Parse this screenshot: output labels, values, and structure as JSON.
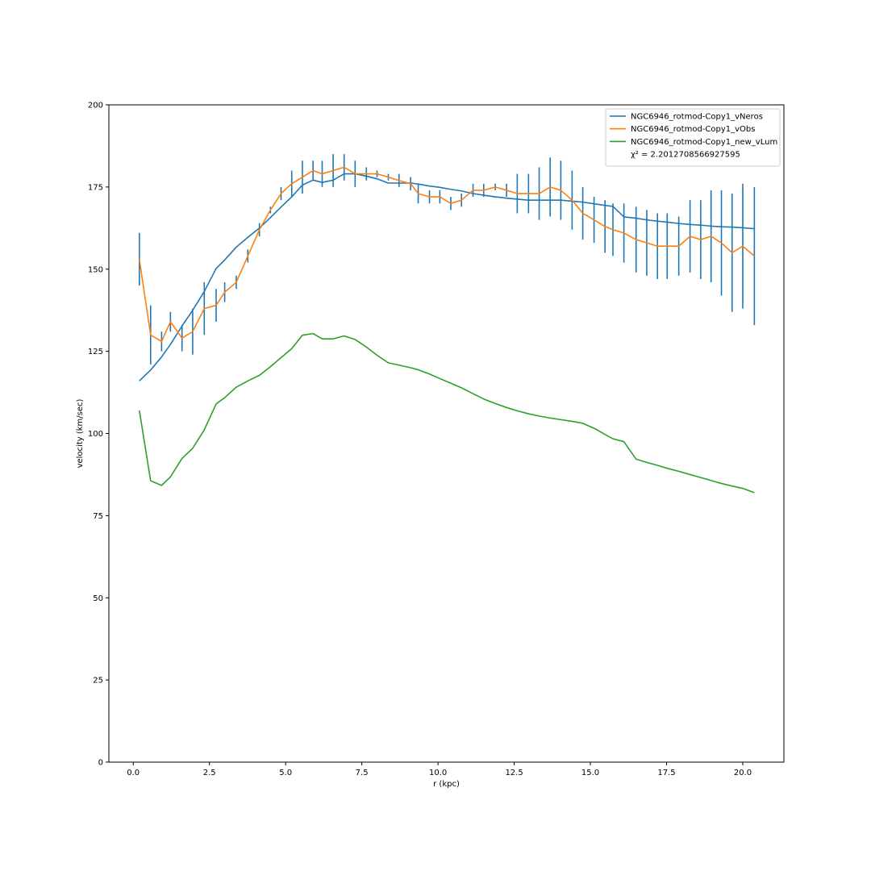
{
  "chart_data": {
    "type": "line",
    "title": "",
    "xlabel": "r (kpc)",
    "ylabel": "velocity (km/sec)",
    "xlim": [
      -0.8,
      21.35
    ],
    "ylim": [
      0,
      200
    ],
    "xticks": [
      {
        "value": 0.0,
        "label": "0.0"
      },
      {
        "value": 2.5,
        "label": "2.5"
      },
      {
        "value": 5.0,
        "label": "5.0"
      },
      {
        "value": 7.5,
        "label": "7.5"
      },
      {
        "value": 10.0,
        "label": "10.0"
      },
      {
        "value": 12.5,
        "label": "12.5"
      },
      {
        "value": 15.0,
        "label": "15.0"
      },
      {
        "value": 17.5,
        "label": "17.5"
      },
      {
        "value": 20.0,
        "label": "20.0"
      }
    ],
    "yticks": [
      {
        "value": 0,
        "label": "0"
      },
      {
        "value": 25,
        "label": "25"
      },
      {
        "value": 50,
        "label": "50"
      },
      {
        "value": 75,
        "label": "75"
      },
      {
        "value": 100,
        "label": "100"
      },
      {
        "value": 125,
        "label": "125"
      },
      {
        "value": 150,
        "label": "150"
      },
      {
        "value": 175,
        "label": "175"
      },
      {
        "value": 200,
        "label": "200"
      }
    ],
    "grid": false,
    "legend_position": "top-right",
    "legend_note": "χ² = 2.2012708566927595",
    "x": [
      0.2,
      0.57,
      0.93,
      1.22,
      1.6,
      1.95,
      2.33,
      2.72,
      3.0,
      3.38,
      3.76,
      4.14,
      4.5,
      4.85,
      5.2,
      5.55,
      5.9,
      6.2,
      6.56,
      6.92,
      7.28,
      7.65,
      8.0,
      8.37,
      8.72,
      9.1,
      9.35,
      9.72,
      10.06,
      10.42,
      10.77,
      11.15,
      11.5,
      11.88,
      12.25,
      12.6,
      12.97,
      13.32,
      13.68,
      14.03,
      14.4,
      14.75,
      15.12,
      15.48,
      15.74,
      16.1,
      16.5,
      16.85,
      17.2,
      17.52,
      17.9,
      18.27,
      18.62,
      18.96,
      19.3,
      19.65,
      20.0,
      20.38
    ],
    "series": [
      {
        "name": "NGC6946_rotmod-Copy1_vNeros",
        "color": "#1f77b4",
        "values": [
          116,
          119.3,
          123.3,
          127.1,
          132.7,
          137.5,
          143.2,
          150.2,
          152.8,
          156.7,
          159.7,
          162.5,
          165.7,
          168.9,
          172,
          175.6,
          177.1,
          176.4,
          177.1,
          179,
          179,
          178.3,
          177.5,
          176.2,
          176.2,
          176.2,
          175.9,
          175.3,
          174.9,
          174.3,
          173.8,
          173,
          172.5,
          172,
          171.6,
          171.3,
          171,
          171,
          171,
          171,
          170.7,
          170.4,
          169.9,
          169.4,
          169.1,
          165.9,
          165.5,
          165,
          164.6,
          164.3,
          163.9,
          163.6,
          163.4,
          163.1,
          162.9,
          162.8,
          162.6,
          162.3
        ]
      },
      {
        "name": "NGC6946_rotmod-Copy1_vObs",
        "color": "#ff7f0e",
        "errors_color": "#1f77b4",
        "values": [
          153,
          130,
          128,
          134,
          129,
          131,
          138,
          139,
          143,
          146,
          154,
          162,
          168,
          173,
          176,
          178,
          180,
          179,
          180,
          181,
          179,
          179,
          179,
          178,
          177,
          176,
          173,
          172,
          172,
          170,
          171,
          174,
          174,
          175,
          174,
          173,
          173,
          173,
          175,
          174,
          171,
          167,
          165,
          163,
          162,
          161,
          159,
          158,
          157,
          157,
          157,
          160,
          159,
          160,
          158,
          155,
          157,
          154
        ],
        "errors": [
          8,
          9,
          3,
          3,
          4,
          7,
          8,
          5,
          3,
          2,
          2,
          2,
          1,
          2,
          4,
          5,
          3,
          4,
          5,
          4,
          4,
          2,
          1,
          1,
          2,
          2,
          3,
          2,
          2,
          2,
          2,
          2,
          2,
          1,
          2,
          6,
          6,
          8,
          9,
          9,
          9,
          8,
          7,
          8,
          8,
          9,
          10,
          10,
          10,
          10,
          9,
          11,
          12,
          14,
          16,
          18,
          19,
          21
        ]
      },
      {
        "name": "NGC6946_rotmod-Copy1_new_vLum",
        "color": "#2ca02c",
        "values": [
          107,
          85.6,
          84.2,
          86.8,
          92.4,
          95.5,
          101.1,
          109,
          110.9,
          114.1,
          116,
          117.7,
          120.3,
          123.1,
          125.8,
          129.9,
          130.4,
          128.8,
          128.8,
          129.7,
          128.6,
          126.3,
          123.8,
          121.5,
          120.8,
          120,
          119.4,
          118.1,
          116.7,
          115.3,
          113.9,
          112.1,
          110.5,
          109.1,
          107.9,
          106.9,
          106,
          105.3,
          104.7,
          104.2,
          103.7,
          103.1,
          101.6,
          99.7,
          98.4,
          97.5,
          92.2,
          91.2,
          90.3,
          89.4,
          88.5,
          87.5,
          86.6,
          85.7,
          84.8,
          84,
          83.3,
          82
        ]
      }
    ]
  }
}
